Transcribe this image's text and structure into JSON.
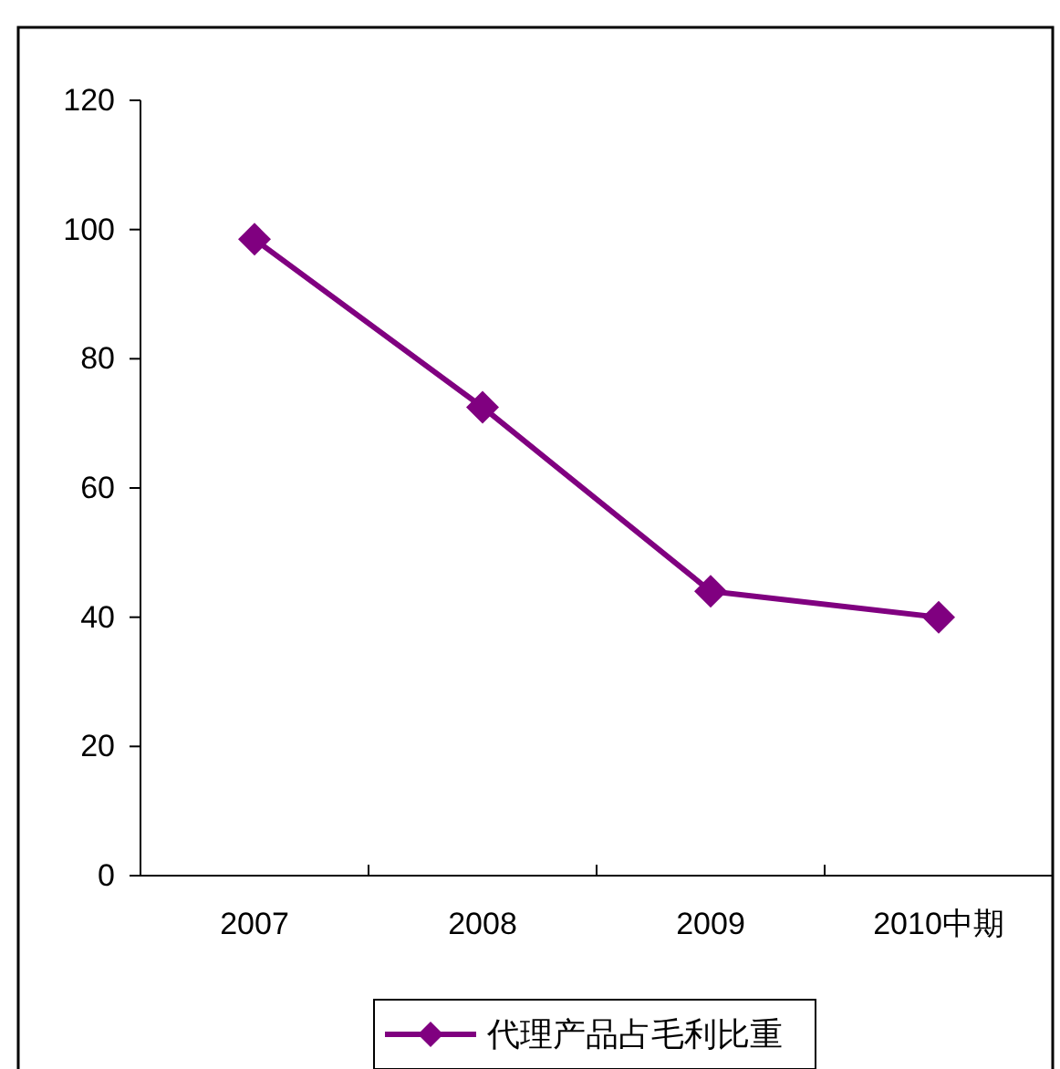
{
  "chart_data": {
    "type": "line",
    "categories": [
      "2007",
      "2008",
      "2009",
      "2010中期"
    ],
    "series": [
      {
        "name": "代理产品占毛利比重",
        "color": "#800080",
        "values": [
          98.5,
          72.5,
          44,
          40
        ]
      }
    ],
    "ylim": [
      0,
      120
    ],
    "yticks": [
      0,
      20,
      40,
      60,
      80,
      100,
      120
    ],
    "marker": "diamond",
    "line_style": "solid",
    "grid": false,
    "legend": "bottom"
  }
}
